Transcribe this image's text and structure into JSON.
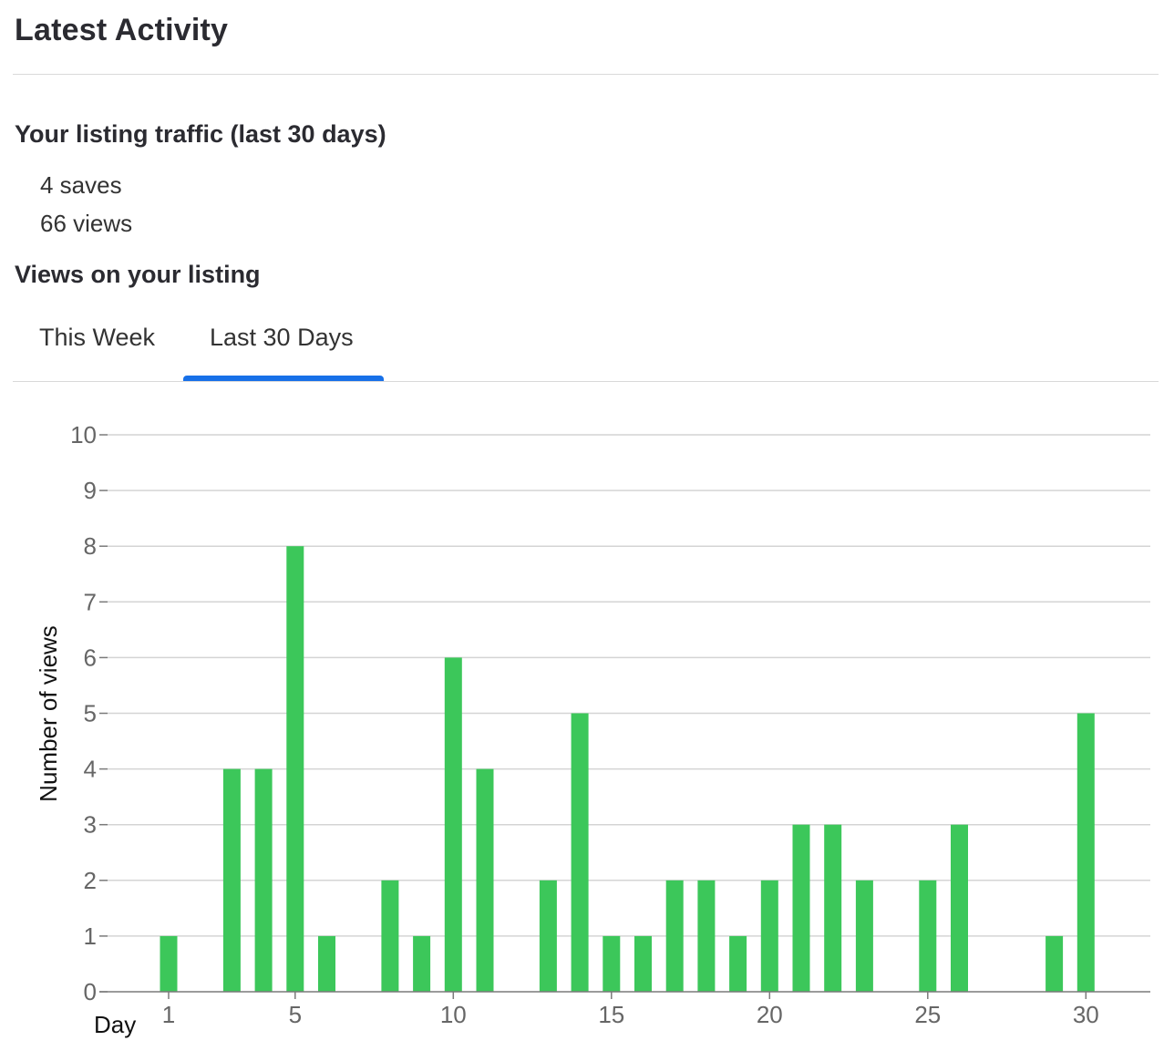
{
  "page": {
    "title": "Latest Activity"
  },
  "traffic": {
    "heading": "Your listing traffic (last 30 days)",
    "saves": "4 saves",
    "views": "66 views"
  },
  "views_section": {
    "heading": "Views on your listing",
    "tabs": [
      {
        "label": "This Week",
        "active": false
      },
      {
        "label": "Last 30 Days",
        "active": true
      }
    ]
  },
  "colors": {
    "bar": "#3cc75a",
    "tab_indicator": "#1770e8",
    "grid": "#d4d4d4",
    "axis": "#7a7a7a"
  },
  "chart_data": {
    "type": "bar",
    "title": "",
    "xlabel": "Day",
    "ylabel": "Number of views",
    "categories": [
      1,
      2,
      3,
      4,
      5,
      6,
      7,
      8,
      9,
      10,
      11,
      12,
      13,
      14,
      15,
      16,
      17,
      18,
      19,
      20,
      21,
      22,
      23,
      24,
      25,
      26,
      27,
      28,
      29,
      30
    ],
    "values": [
      1,
      0,
      4,
      4,
      8,
      1,
      0,
      2,
      1,
      6,
      4,
      0,
      2,
      5,
      1,
      1,
      2,
      2,
      1,
      2,
      3,
      3,
      2,
      0,
      2,
      3,
      0,
      0,
      1,
      5
    ],
    "x_ticks": [
      1,
      5,
      10,
      15,
      20,
      25,
      30
    ],
    "y_ticks": [
      0,
      1,
      2,
      3,
      4,
      5,
      6,
      7,
      8,
      9,
      10
    ],
    "ylim": [
      0,
      10
    ],
    "grid": true,
    "legend": "none"
  }
}
